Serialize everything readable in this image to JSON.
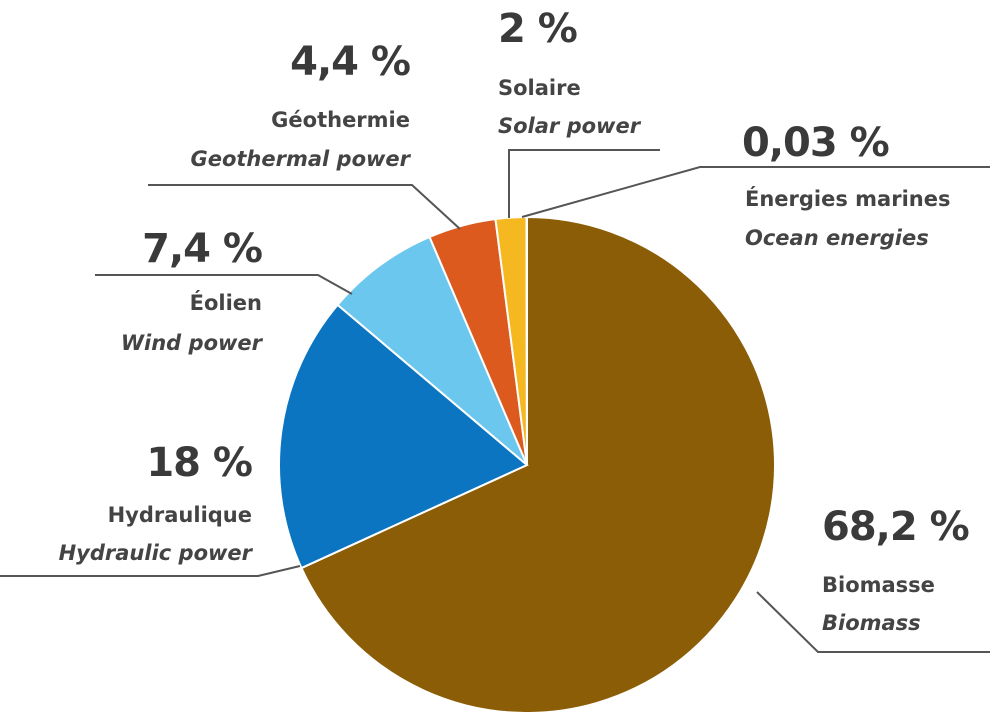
{
  "chart_data": {
    "type": "pie",
    "title": "",
    "colors": [
      "#8a5d06",
      "#0b75c2",
      "#6cc7ef",
      "#dd5a1e",
      "#f5b820",
      "#6aa8d4"
    ],
    "slices": [
      {
        "value": 68.2,
        "percent_label": "68,2 %",
        "label_fr": "Biomasse",
        "label_en": "Biomass"
      },
      {
        "value": 18,
        "percent_label": "18 %",
        "label_fr": "Hydraulique",
        "label_en": "Hydraulic power"
      },
      {
        "value": 7.4,
        "percent_label": "7,4 %",
        "label_fr": "Éolien",
        "label_en": "Wind power"
      },
      {
        "value": 4.4,
        "percent_label": "4,4 %",
        "label_fr": "Géothermie",
        "label_en": "Geothermal power"
      },
      {
        "value": 2,
        "percent_label": "2 %",
        "label_fr": "Solaire",
        "label_en": "Solar power"
      },
      {
        "value": 0.03,
        "percent_label": "0,03 %",
        "label_fr": "Énergies marines",
        "label_en": "Ocean energies"
      }
    ]
  }
}
